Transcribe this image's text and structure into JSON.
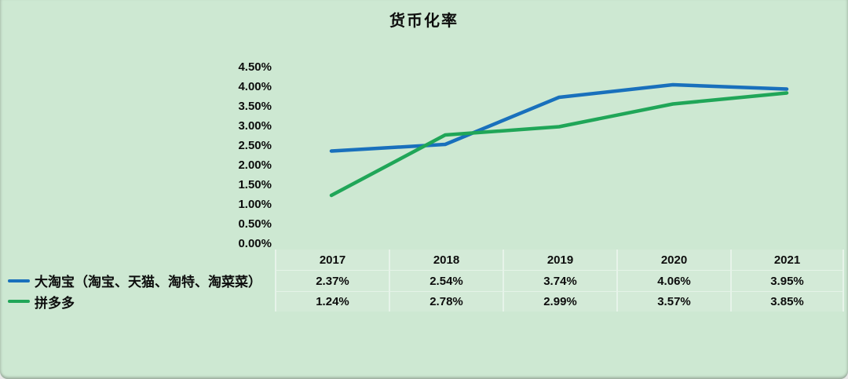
{
  "colors": {
    "background": "#cde8d2",
    "series_blue": "#1970bc",
    "series_green": "#20a658",
    "text": "#0d0d0d"
  },
  "chart_data": {
    "type": "line",
    "title": "货币化率",
    "categories": [
      "2017",
      "2018",
      "2019",
      "2020",
      "2021"
    ],
    "series": [
      {
        "name": "大淘宝（淘宝、天猫、淘特、淘菜菜）",
        "color": "#1970bc",
        "values": [
          2.37,
          2.54,
          3.74,
          4.06,
          3.95
        ],
        "labels": [
          "2.37%",
          "2.54%",
          "3.74%",
          "4.06%",
          "3.95%"
        ]
      },
      {
        "name": "拼多多",
        "color": "#20a658",
        "values": [
          1.24,
          2.78,
          2.99,
          3.57,
          3.85
        ],
        "labels": [
          "1.24%",
          "2.78%",
          "2.99%",
          "3.57%",
          "3.85%"
        ]
      }
    ],
    "y_axis": {
      "min": 0,
      "max": 4.5,
      "step": 0.5,
      "tick_labels": [
        "4.50%",
        "4.00%",
        "3.50%",
        "3.00%",
        "2.50%",
        "2.00%",
        "1.50%",
        "1.00%",
        "0.50%",
        "0.00%"
      ]
    },
    "grid": false,
    "legend_position": "table-left",
    "data_table_shown": true
  }
}
